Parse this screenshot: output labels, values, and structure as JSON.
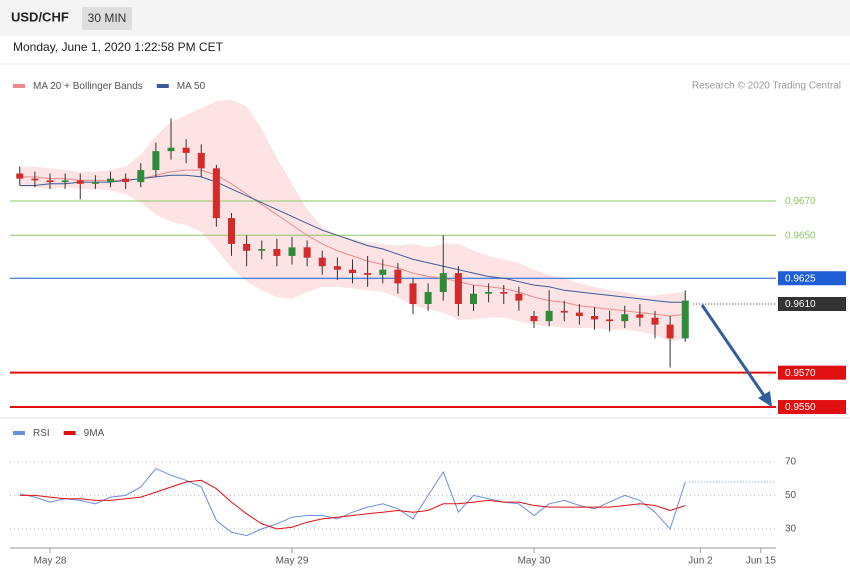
{
  "header": {
    "symbol": "USD/CHF",
    "interval": "30 MIN",
    "timestamp": "Monday, June 1, 2020 1:22:58 PM CET",
    "watermark": "Research © 2020 Trading Central"
  },
  "chart_data": [
    {
      "type": "candlestick",
      "ylim": [
        0.9546,
        0.9732
      ],
      "up_color": "#2e8b3a",
      "down_color": "#d42a2a",
      "band_color": "#fde3e3",
      "open": [
        0.9686,
        0.9683,
        0.9682,
        0.9681,
        0.9682,
        0.968,
        0.9681,
        0.9683,
        0.9681,
        0.9688,
        0.9699,
        0.9701,
        0.9698,
        0.9689,
        0.966,
        0.9645,
        0.9641,
        0.9642,
        0.9638,
        0.9643,
        0.9637,
        0.9632,
        0.963,
        0.9628,
        0.9627,
        0.963,
        0.9622,
        0.961,
        0.9617,
        0.9628,
        0.961,
        0.9616,
        0.9617,
        0.9616,
        0.9603,
        0.96,
        0.9606,
        0.9605,
        0.9603,
        0.9601,
        0.96,
        0.9604,
        0.9602,
        0.9598,
        0.959,
        null,
        null,
        null,
        null,
        null
      ],
      "high": [
        0.969,
        0.9687,
        0.9686,
        0.9686,
        0.9686,
        0.9685,
        0.9687,
        0.9686,
        0.9692,
        0.9704,
        0.9718,
        0.9706,
        0.9703,
        0.9691,
        0.9663,
        0.965,
        0.9647,
        0.9648,
        0.9649,
        0.9647,
        0.9641,
        0.9637,
        0.9636,
        0.9638,
        0.9636,
        0.9634,
        0.9625,
        0.9622,
        0.965,
        0.9632,
        0.9621,
        0.9622,
        0.9621,
        0.962,
        0.9606,
        0.9618,
        0.9612,
        0.961,
        0.9608,
        0.9606,
        0.9609,
        0.961,
        0.9606,
        0.9603,
        0.9618,
        null,
        null,
        null,
        null,
        null
      ],
      "low": [
        0.9679,
        0.9678,
        0.9677,
        0.9677,
        0.9671,
        0.9677,
        0.9678,
        0.9677,
        0.9678,
        0.9684,
        0.9694,
        0.9692,
        0.9684,
        0.9655,
        0.9638,
        0.9632,
        0.9636,
        0.9632,
        0.9633,
        0.9632,
        0.9627,
        0.9624,
        0.9622,
        0.962,
        0.9622,
        0.9616,
        0.9604,
        0.9606,
        0.9612,
        0.9603,
        0.9606,
        0.9611,
        0.961,
        0.9606,
        0.9596,
        0.9597,
        0.96,
        0.9598,
        0.9595,
        0.9594,
        0.9596,
        0.9597,
        0.959,
        0.9573,
        0.9588,
        null,
        null,
        null,
        null,
        null
      ],
      "close": [
        0.9683,
        0.9682,
        0.9681,
        0.9682,
        0.968,
        0.9681,
        0.9683,
        0.9681,
        0.9688,
        0.9699,
        0.9701,
        0.9698,
        0.9689,
        0.966,
        0.9645,
        0.9641,
        0.9642,
        0.9638,
        0.9643,
        0.9637,
        0.9632,
        0.963,
        0.9628,
        0.9627,
        0.963,
        0.9622,
        0.961,
        0.9617,
        0.9628,
        0.961,
        0.9616,
        0.9617,
        0.9616,
        0.9612,
        0.96,
        0.9606,
        0.9605,
        0.9603,
        0.9601,
        0.96,
        0.9604,
        0.9602,
        0.9598,
        0.959,
        0.9612,
        null,
        null,
        null,
        null,
        null
      ],
      "series": [
        {
          "name": "MA 20 + Bollinger Bands",
          "color": "#f08a8a",
          "values": [
            0.9684,
            0.9684,
            0.9683,
            0.9683,
            0.9682,
            0.9682,
            0.9682,
            0.9682,
            0.9683,
            0.9685,
            0.9687,
            0.9688,
            0.9688,
            0.9685,
            0.968,
            0.9674,
            0.9668,
            0.9662,
            0.9656,
            0.965,
            0.9645,
            0.9641,
            0.9638,
            0.9635,
            0.9633,
            0.9631,
            0.9628,
            0.9626,
            0.9625,
            0.9623,
            0.9621,
            0.962,
            0.9619,
            0.9617,
            0.9614,
            0.9612,
            0.9611,
            0.9609,
            0.9608,
            0.9607,
            0.9606,
            0.9605,
            0.9604,
            0.9603,
            0.9604,
            null,
            null,
            null,
            null,
            null
          ],
          "upper": [
            0.969,
            0.969,
            0.9689,
            0.9688,
            0.9687,
            0.9687,
            0.9688,
            0.969,
            0.9697,
            0.9708,
            0.9716,
            0.972,
            0.9724,
            0.9728,
            0.9729,
            0.9725,
            0.9712,
            0.9695,
            0.968,
            0.9665,
            0.9655,
            0.965,
            0.9648,
            0.9646,
            0.9645,
            0.9644,
            0.9645,
            0.9643,
            0.9645,
            0.9645,
            0.9641,
            0.9638,
            0.9636,
            0.9634,
            0.963,
            0.9627,
            0.9625,
            0.9622,
            0.962,
            0.9618,
            0.9617,
            0.9615,
            0.9615,
            0.9616,
            0.9617,
            null,
            null,
            null,
            null,
            null
          ],
          "lower": [
            0.9678,
            0.9678,
            0.9677,
            0.9678,
            0.9677,
            0.9677,
            0.9676,
            0.9674,
            0.9669,
            0.9662,
            0.9658,
            0.9656,
            0.9652,
            0.9642,
            0.9631,
            0.9623,
            0.9618,
            0.9614,
            0.9613,
            0.9617,
            0.962,
            0.962,
            0.9619,
            0.9618,
            0.9617,
            0.9614,
            0.9609,
            0.9607,
            0.9605,
            0.9601,
            0.9601,
            0.9602,
            0.9602,
            0.96,
            0.9598,
            0.9597,
            0.9596,
            0.9596,
            0.9596,
            0.9595,
            0.9595,
            0.9594,
            0.9592,
            0.9588,
            0.959,
            null,
            null,
            null,
            null,
            null
          ]
        },
        {
          "name": "MA 50",
          "color": "#3b5b98",
          "values": [
            0.9679,
            0.9679,
            0.968,
            0.968,
            0.9681,
            0.9681,
            0.9681,
            0.9682,
            0.9683,
            0.9684,
            0.9685,
            0.9685,
            0.9684,
            0.9681,
            0.9677,
            0.9673,
            0.9669,
            0.9665,
            0.9661,
            0.9657,
            0.9653,
            0.965,
            0.9647,
            0.9644,
            0.9642,
            0.9639,
            0.9636,
            0.9634,
            0.9632,
            0.963,
            0.9628,
            0.9626,
            0.9625,
            0.9623,
            0.9621,
            0.962,
            0.9618,
            0.9617,
            0.9616,
            0.9615,
            0.9614,
            0.9613,
            0.9612,
            0.9611,
            0.9611,
            null,
            null,
            null,
            null,
            null
          ]
        }
      ],
      "levels": [
        {
          "value": 0.967,
          "label": "0.9670",
          "color": "#8cc866",
          "boxed": false,
          "style": "thin"
        },
        {
          "value": 0.965,
          "label": "0.9650",
          "color": "#8cc866",
          "boxed": false,
          "style": "thin"
        },
        {
          "value": 0.9625,
          "label": "0.9625",
          "color": "#1f5fd6",
          "boxed": true,
          "style": "thin"
        },
        {
          "value": 0.961,
          "label": "0.9610",
          "color": "#333333",
          "boxed": true,
          "style": "dotted"
        },
        {
          "value": 0.957,
          "label": "0.9570",
          "color": "#e01010",
          "boxed": true,
          "style": "thick"
        },
        {
          "value": 0.955,
          "label": "0.9550",
          "color": "#e01010",
          "boxed": true,
          "style": "thick"
        }
      ]
    },
    {
      "type": "line",
      "ylim": [
        18.6,
        77
      ],
      "yticks": [
        30,
        50,
        70
      ],
      "grid": true,
      "categories": [
        null,
        null,
        "May 28",
        null,
        null,
        null,
        null,
        null,
        null,
        null,
        null,
        null,
        null,
        null,
        null,
        null,
        null,
        null,
        "May 29",
        null,
        null,
        null,
        null,
        null,
        null,
        null,
        null,
        null,
        null,
        null,
        null,
        null,
        null,
        null,
        "May 30",
        null,
        null,
        null,
        null,
        null,
        null,
        null,
        null,
        null,
        null,
        "Jun 2",
        null,
        null,
        null,
        "Jun 15"
      ],
      "series": [
        {
          "name": "RSI",
          "color": "#6a8ee0",
          "values": [
            51,
            49,
            46,
            48,
            47,
            45,
            49,
            50,
            55,
            66,
            62,
            59,
            55,
            35,
            28,
            26,
            30,
            33,
            37,
            38,
            38,
            36,
            40,
            43,
            45,
            42,
            36,
            50,
            64,
            40,
            50,
            48,
            46,
            45,
            38,
            45,
            47,
            44,
            42,
            46,
            50,
            47,
            40,
            30,
            58,
            null,
            null,
            null,
            null,
            null
          ]
        },
        {
          "name": "9MA",
          "color": "#e01010",
          "values": [
            50,
            50,
            49,
            48,
            48,
            47,
            47,
            48,
            49,
            52,
            55,
            58,
            59,
            54,
            46,
            39,
            33,
            30,
            31,
            34,
            36,
            37,
            38,
            39,
            40,
            41,
            40,
            41,
            45,
            45,
            46,
            47,
            46,
            46,
            44,
            43,
            43,
            43,
            43,
            43,
            44,
            45,
            44,
            41,
            44,
            null,
            null,
            null,
            null,
            null
          ]
        }
      ]
    }
  ]
}
